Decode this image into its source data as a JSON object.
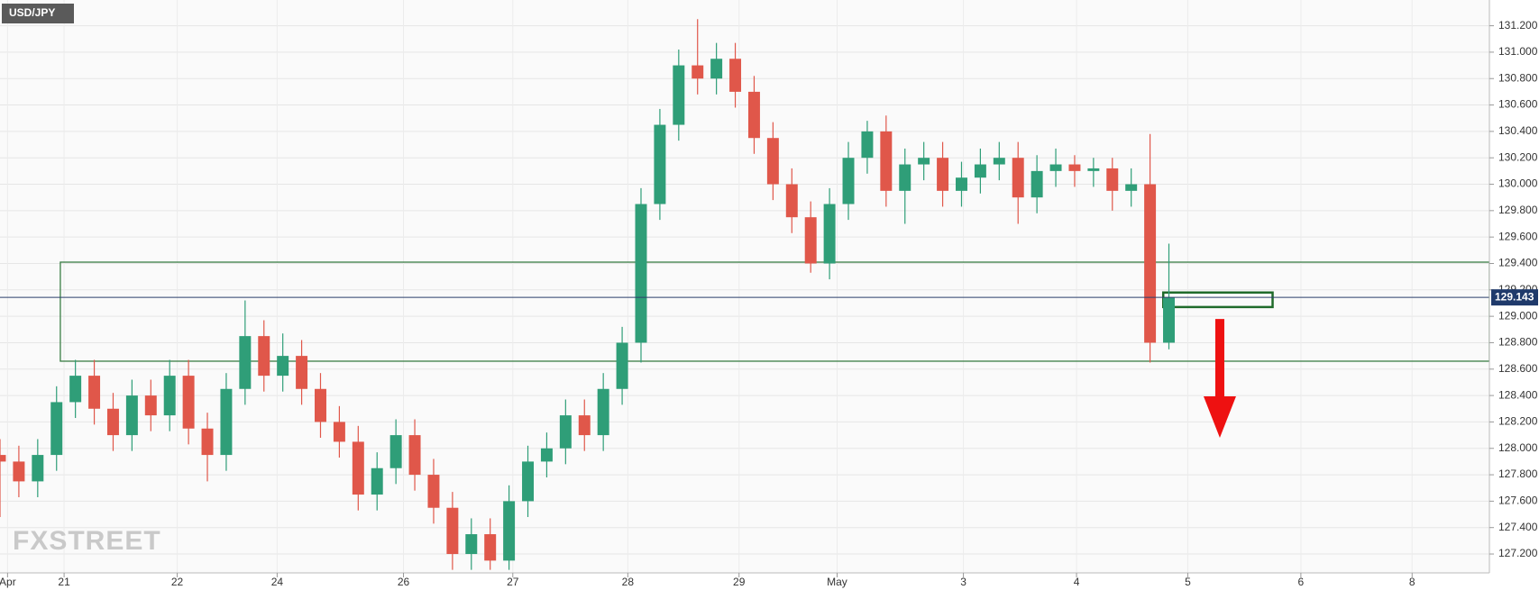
{
  "chart_data": {
    "type": "candlestick",
    "title": "USD/JPY",
    "watermark": "FXSTREET",
    "up_color": "#2f9e78",
    "down_color": "#e0574a",
    "open": [
      127.95,
      127.9,
      127.75,
      127.95,
      128.35,
      128.55,
      128.3,
      128.1,
      128.4,
      128.25,
      128.55,
      128.15,
      127.95,
      128.45,
      128.85,
      128.55,
      128.7,
      128.45,
      128.2,
      128.05,
      127.65,
      127.85,
      128.1,
      127.8,
      127.55,
      127.2,
      127.35,
      127.15,
      127.6,
      127.9,
      128.0,
      128.25,
      128.1,
      128.45,
      128.8,
      129.85,
      130.45,
      130.9,
      130.8,
      130.95,
      130.7,
      130.35,
      130.0,
      129.75,
      129.4,
      129.85,
      130.2,
      130.4,
      129.95,
      130.15,
      130.2,
      129.95,
      130.05,
      130.15,
      130.2,
      129.9,
      130.1,
      130.15,
      130.1,
      130.12,
      129.95,
      130.0,
      128.8
    ],
    "high": [
      128.07,
      128.02,
      128.07,
      128.47,
      128.67,
      128.67,
      128.42,
      128.52,
      128.52,
      128.67,
      128.67,
      128.27,
      128.57,
      129.12,
      128.97,
      128.87,
      128.82,
      128.57,
      128.32,
      128.17,
      127.97,
      128.22,
      128.22,
      127.92,
      127.67,
      127.47,
      127.47,
      127.72,
      128.02,
      128.12,
      128.37,
      128.37,
      128.57,
      128.92,
      129.97,
      130.57,
      131.02,
      131.25,
      131.07,
      131.07,
      130.82,
      130.47,
      130.12,
      129.87,
      129.97,
      130.32,
      130.48,
      130.52,
      130.27,
      130.32,
      130.32,
      130.17,
      130.27,
      130.32,
      130.32,
      130.22,
      130.27,
      130.22,
      130.2,
      130.2,
      130.12,
      130.38,
      129.55
    ],
    "low": [
      127.48,
      127.63,
      127.63,
      127.83,
      128.23,
      128.18,
      127.98,
      127.98,
      128.13,
      128.13,
      128.03,
      127.75,
      127.83,
      128.33,
      128.43,
      128.43,
      128.33,
      128.08,
      127.93,
      127.53,
      127.53,
      127.73,
      127.68,
      127.43,
      127.08,
      127.08,
      127.08,
      127.08,
      127.48,
      127.78,
      127.88,
      127.98,
      127.98,
      128.33,
      128.65,
      129.73,
      130.33,
      130.68,
      130.68,
      130.58,
      130.23,
      129.88,
      129.63,
      129.33,
      129.28,
      129.73,
      130.08,
      129.83,
      129.7,
      130.03,
      129.83,
      129.83,
      129.93,
      130.03,
      129.7,
      129.78,
      129.98,
      129.98,
      129.98,
      129.8,
      129.83,
      128.65,
      128.75
    ],
    "close": [
      127.9,
      127.75,
      127.95,
      128.35,
      128.55,
      128.3,
      128.1,
      128.4,
      128.25,
      128.55,
      128.15,
      127.95,
      128.45,
      128.85,
      128.55,
      128.7,
      128.45,
      128.2,
      128.05,
      127.65,
      127.85,
      128.1,
      127.8,
      127.55,
      127.2,
      127.35,
      127.15,
      127.6,
      127.9,
      128.0,
      128.25,
      128.1,
      128.45,
      128.8,
      129.85,
      130.45,
      130.9,
      130.8,
      130.95,
      130.7,
      130.35,
      130.0,
      129.75,
      129.4,
      129.85,
      130.2,
      130.4,
      129.95,
      130.15,
      130.2,
      129.95,
      130.05,
      130.15,
      130.2,
      129.9,
      130.1,
      130.15,
      130.1,
      130.12,
      129.95,
      130.0,
      128.8,
      129.143
    ],
    "last_price": 129.143,
    "zones": [
      {
        "x": [
          3.2,
          79
        ],
        "y": [
          128.66,
          129.41
        ],
        "color": "#3a7d44"
      },
      {
        "x": [
          61.7,
          67.5
        ],
        "y": [
          129.07,
          129.18
        ],
        "color": "#1f6b2a"
      }
    ],
    "arrow": {
      "x": 64.7,
      "y": [
        128.98,
        128.08
      ],
      "color": "#ee1111"
    },
    "xlim": [
      0,
      79
    ],
    "xticks": [
      {
        "value": 0.4,
        "label": "Apr"
      },
      {
        "value": 3.4,
        "label": "21"
      },
      {
        "value": 9.4,
        "label": "22"
      },
      {
        "value": 14.7,
        "label": "24"
      },
      {
        "value": 21.4,
        "label": "26"
      },
      {
        "value": 27.2,
        "label": "27"
      },
      {
        "value": 33.3,
        "label": "28"
      },
      {
        "value": 39.2,
        "label": "29"
      },
      {
        "value": 44.4,
        "label": "May"
      },
      {
        "value": 51.1,
        "label": "3"
      },
      {
        "value": 57.1,
        "label": "4"
      },
      {
        "value": 63,
        "label": "5"
      },
      {
        "value": 69,
        "label": "6"
      },
      {
        "value": 74.9,
        "label": "8"
      }
    ],
    "ylim": [
      127.057,
      131.395
    ],
    "yticks": [
      {
        "value": 127.2,
        "label": "127.200"
      },
      {
        "value": 127.4,
        "label": "127.400"
      },
      {
        "value": 127.6,
        "label": "127.600"
      },
      {
        "value": 127.8,
        "label": "127.800"
      },
      {
        "value": 128.0,
        "label": "128.000"
      },
      {
        "value": 128.2,
        "label": "128.200"
      },
      {
        "value": 128.4,
        "label": "128.400"
      },
      {
        "value": 128.6,
        "label": "128.600"
      },
      {
        "value": 128.8,
        "label": "128.800"
      },
      {
        "value": 129.0,
        "label": "129.000"
      },
      {
        "value": 129.2,
        "label": "129.200"
      },
      {
        "value": 129.4,
        "label": "129.400"
      },
      {
        "value": 129.6,
        "label": "129.600"
      },
      {
        "value": 129.8,
        "label": "129.800"
      },
      {
        "value": 130.0,
        "label": "130.000"
      },
      {
        "value": 130.2,
        "label": "130.200"
      },
      {
        "value": 130.4,
        "label": "130.400"
      },
      {
        "value": 130.6,
        "label": "130.600"
      },
      {
        "value": 130.8,
        "label": "130.800"
      },
      {
        "value": 131.0,
        "label": "131.000"
      },
      {
        "value": 131.2,
        "label": "131.200"
      }
    ],
    "grid": true
  }
}
